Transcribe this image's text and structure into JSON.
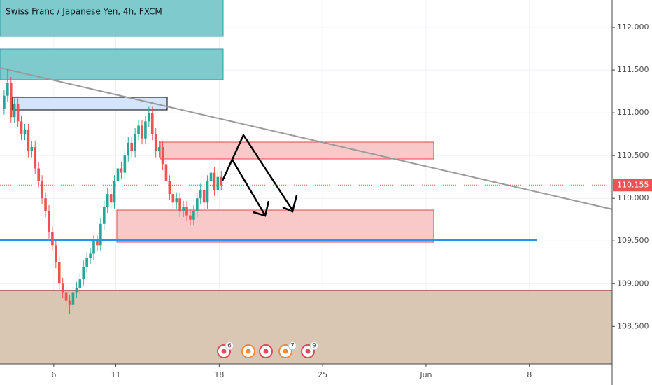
{
  "chart_data": {
    "type": "candlestick",
    "title": "Swiss Franc / Japanese Yen, 4h, FXCM",
    "x": [
      0.6,
      0.767,
      0.933,
      1.1,
      1.267,
      1.433,
      1.6,
      1.767,
      1.933,
      2.1,
      2.267,
      2.433,
      2.6,
      2.767,
      2.933,
      3.1,
      3.267,
      3.433,
      3.6,
      3.767,
      3.933,
      4.1,
      4.267,
      4.433,
      4.6,
      4.767,
      4.933,
      5.1,
      5.267,
      5.433,
      5.6,
      5.767,
      5.933,
      6.1,
      6.267,
      6.433,
      6.6,
      6.767,
      6.933,
      7.1,
      7.267,
      7.433,
      7.6,
      7.767,
      7.933,
      8.1,
      8.267,
      8.433,
      8.6,
      8.767,
      8.933,
      9.1,
      9.267,
      9.433,
      9.6,
      9.767,
      9.933,
      10.1,
      10.267,
      10.433,
      10.6,
      10.767,
      10.933,
      11.1
    ],
    "open": [
      111.05,
      111.2,
      111.35,
      110.95,
      111.1,
      110.9,
      110.75,
      110.8,
      110.55,
      110.6,
      110.35,
      110.2,
      110.0,
      109.85,
      109.6,
      109.45,
      109.25,
      109.0,
      108.9,
      108.8,
      108.75,
      108.9,
      108.95,
      109.05,
      109.2,
      109.3,
      109.35,
      109.5,
      109.45,
      109.7,
      109.9,
      110.05,
      109.95,
      110.2,
      110.35,
      110.3,
      110.5,
      110.65,
      110.55,
      110.75,
      110.85,
      110.7,
      110.9,
      111.0,
      110.75,
      110.55,
      110.6,
      110.4,
      110.2,
      110.05,
      109.95,
      110.0,
      109.85,
      109.9,
      109.8,
      109.75,
      109.85,
      110.0,
      110.1,
      109.95,
      110.2,
      110.3,
      110.1,
      110.25
    ],
    "high": [
      111.27,
      111.52,
      111.42,
      111.17,
      111.17,
      110.97,
      110.87,
      110.87,
      110.67,
      110.67,
      110.42,
      110.27,
      110.07,
      109.92,
      109.67,
      109.52,
      109.32,
      109.07,
      108.97,
      108.87,
      108.97,
      109.02,
      109.12,
      109.27,
      109.37,
      109.42,
      109.57,
      109.57,
      109.77,
      109.97,
      110.12,
      110.12,
      110.27,
      110.42,
      110.42,
      110.57,
      110.72,
      110.72,
      110.82,
      110.92,
      110.92,
      110.97,
      111.07,
      111.07,
      110.82,
      110.67,
      110.67,
      110.47,
      110.27,
      110.12,
      110.07,
      110.07,
      109.97,
      109.97,
      109.87,
      109.92,
      110.07,
      110.17,
      110.17,
      110.27,
      110.37,
      110.37,
      110.32,
      110.32
    ],
    "low": [
      110.98,
      111.13,
      110.88,
      110.88,
      110.83,
      110.68,
      110.68,
      110.48,
      110.48,
      110.28,
      110.13,
      109.93,
      109.78,
      109.53,
      109.38,
      109.18,
      108.93,
      108.83,
      108.73,
      108.65,
      108.68,
      108.83,
      108.88,
      108.98,
      109.13,
      109.23,
      109.28,
      109.38,
      109.38,
      109.63,
      109.83,
      109.88,
      109.88,
      110.13,
      110.23,
      110.23,
      110.43,
      110.48,
      110.48,
      110.68,
      110.63,
      110.63,
      110.83,
      110.68,
      110.48,
      110.48,
      110.33,
      110.13,
      109.98,
      109.88,
      109.88,
      109.78,
      109.78,
      109.73,
      109.68,
      109.68,
      109.78,
      109.93,
      109.88,
      109.88,
      110.13,
      110.03,
      110.03,
      110.09
    ],
    "close": [
      111.2,
      111.35,
      110.95,
      111.1,
      110.9,
      110.75,
      110.8,
      110.55,
      110.6,
      110.35,
      110.2,
      110.0,
      109.85,
      109.6,
      109.45,
      109.25,
      109.0,
      108.9,
      108.8,
      108.75,
      108.9,
      108.95,
      109.05,
      109.2,
      109.3,
      109.35,
      109.5,
      109.45,
      109.7,
      109.9,
      110.05,
      109.95,
      110.2,
      110.35,
      110.3,
      110.5,
      110.65,
      110.55,
      110.75,
      110.85,
      110.7,
      110.9,
      111.0,
      110.75,
      110.55,
      110.6,
      110.4,
      110.2,
      110.05,
      109.95,
      110.0,
      109.85,
      109.9,
      109.8,
      109.75,
      109.85,
      110.0,
      110.1,
      109.95,
      110.2,
      110.3,
      110.1,
      110.25,
      110.155
    ],
    "up_color": "#26a69a",
    "down_color": "#ef5350",
    "xlim": [
      0.4,
      30.0
    ],
    "xticks": [
      {
        "value": 3,
        "label": "6"
      },
      {
        "value": 6,
        "label": "11"
      },
      {
        "value": 11,
        "label": "18"
      },
      {
        "value": 16,
        "label": "25"
      },
      {
        "value": 21,
        "label": "Jun"
      },
      {
        "value": 26,
        "label": "8"
      }
    ],
    "ylim": [
      108.06,
      112.32
    ],
    "yticks": [
      {
        "value": 108.5,
        "label": "108.500"
      },
      {
        "value": 109,
        "label": "109.000"
      },
      {
        "value": 109.5,
        "label": "109.500"
      },
      {
        "value": 110,
        "label": "110.000"
      },
      {
        "value": 110.5,
        "label": "110.500"
      },
      {
        "value": 111,
        "label": "111.000"
      },
      {
        "value": 111.5,
        "label": "111.500"
      },
      {
        "value": 112,
        "label": "112.000"
      }
    ],
    "grid": true,
    "price_line": {
      "value": 110.155,
      "label": "110.155",
      "color": "#ef5350"
    },
    "events": [
      "6",
      "7",
      "9"
    ]
  }
}
